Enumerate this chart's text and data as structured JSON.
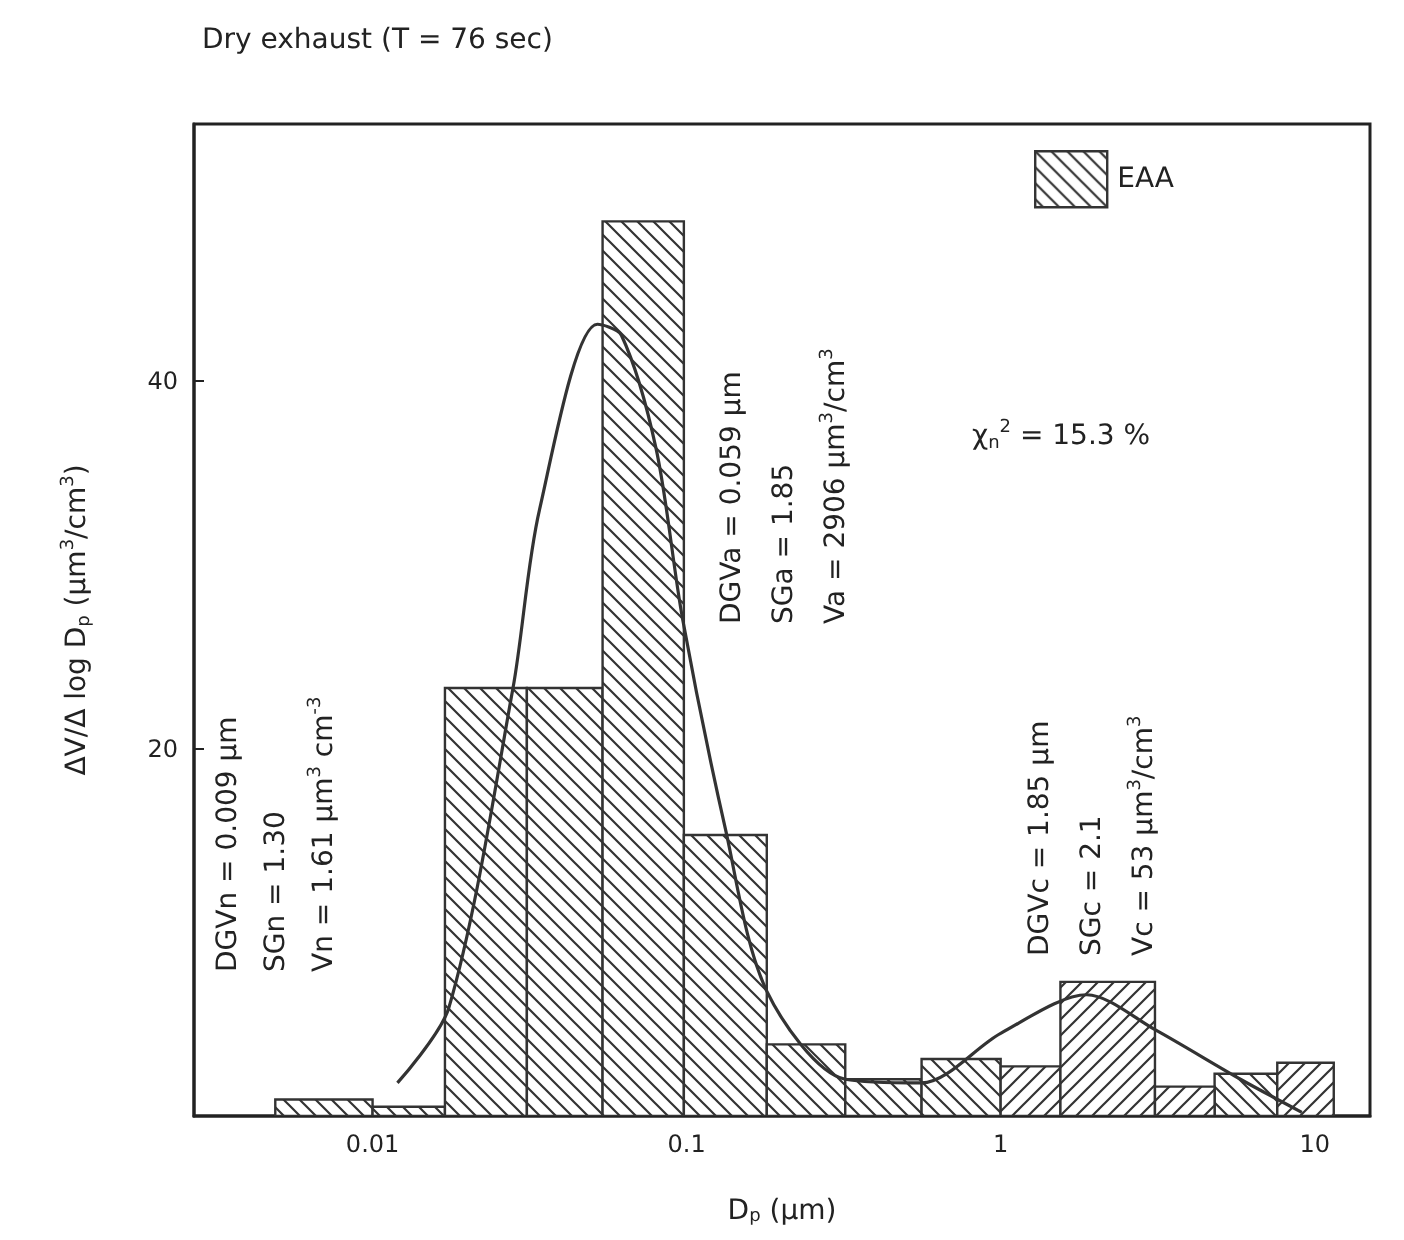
{
  "chart_data": {
    "type": "histogram",
    "title": "Dry exhaust (T = 76 sec)",
    "xlabel": "D$_{p}$ (µm)",
    "ylabel": "ΔV/Δ log D$_{p}$ (µm$^{3}$/cm$^{3}$)",
    "bins": [
      0.0049,
      0.01,
      0.017,
      0.031,
      0.054,
      0.098,
      0.18,
      0.32,
      0.56,
      1.0,
      1.55,
      3.1,
      4.8,
      7.6,
      11.5
    ],
    "series": [
      {
        "name": "EAA",
        "color": "#333333",
        "values": [
          0.9,
          0.5,
          23.3,
          23.3,
          48.7,
          15.3,
          3.9,
          2.0,
          3.1,
          null,
          null,
          null,
          2.3,
          null
        ]
      },
      {
        "color": "#333333",
        "values": [
          null,
          null,
          null,
          null,
          null,
          null,
          null,
          null,
          null,
          2.7,
          7.3,
          1.6,
          null,
          2.9
        ]
      },
      {
        "type": "line",
        "color": "#333333",
        "x": [
          0.012,
          0.0175,
          0.028,
          0.034,
          0.052,
          0.062,
          0.08,
          0.097,
          0.133,
          0.18,
          0.32,
          0.56,
          1.0,
          1.88,
          3.1,
          5.8,
          9.1
        ],
        "values": [
          1.8,
          5.9,
          23.3,
          33,
          43.1,
          42.5,
          36.3,
          27.1,
          15.6,
          6.8,
          2.0,
          1.8,
          4.5,
          6.6,
          4.7,
          2.0,
          0.2
        ]
      }
    ],
    "log": "x",
    "xlim": [
      0.0027,
      15
    ],
    "xticks": [
      0.01,
      0.1,
      1,
      10
    ],
    "ylim": [
      0,
      54
    ],
    "yticks": [
      20,
      40
    ],
    "legend": "top right",
    "grid": false,
    "marker": "none",
    "annotations": [
      "DGVn = 0.009 µm",
      "SGn = 1.30",
      "Vn = 1.61 µm$^{3}$ cm$^{-3}$",
      "DGVa = 0.059 µm",
      "SGa = 1.85",
      "Va = 2906 µm$^{3}$/cm$^{3}$",
      "DGVc = 1.85 µm",
      "SGc = 2.1",
      "Vc = 53 µm$^{3}$/cm$^{3}$",
      "χ$_{n}$$^{2}$ = 15.3 %"
    ]
  }
}
